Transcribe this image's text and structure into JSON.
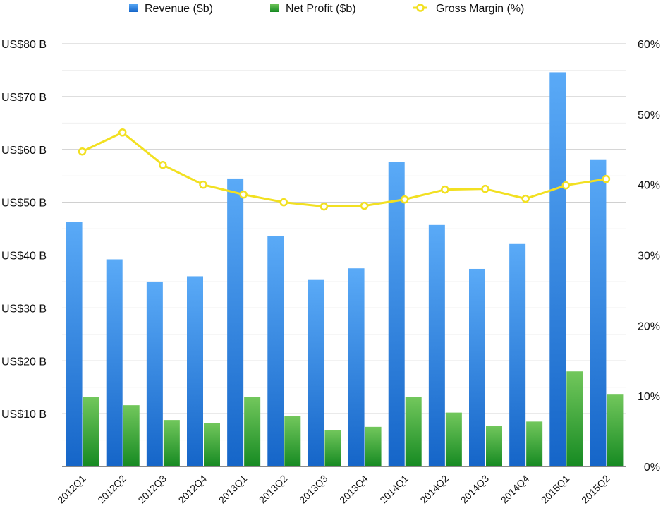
{
  "chart_data": {
    "type": "bar",
    "categories": [
      "2012Q1",
      "2012Q2",
      "2012Q3",
      "2012Q4",
      "2013Q1",
      "2013Q2",
      "2013Q3",
      "2013Q4",
      "2014Q1",
      "2014Q2",
      "2014Q3",
      "2014Q4",
      "2015Q1",
      "2015Q2"
    ],
    "series": [
      {
        "name": "Revenue ($b)",
        "type": "bar",
        "axis": "left",
        "color": "#2f86e8",
        "values": [
          46.3,
          39.2,
          35.0,
          36.0,
          54.5,
          43.6,
          35.3,
          37.5,
          57.6,
          45.7,
          37.4,
          42.1,
          74.6,
          58.0
        ]
      },
      {
        "name": "Net Profit ($b)",
        "type": "bar",
        "axis": "left",
        "color": "#3fa535",
        "values": [
          13.1,
          11.6,
          8.8,
          8.2,
          13.1,
          9.5,
          6.9,
          7.5,
          13.1,
          10.2,
          7.7,
          8.5,
          18.0,
          13.6
        ]
      },
      {
        "name": "Gross Margin (%)",
        "type": "line",
        "axis": "right",
        "color": "#f2e021",
        "values": [
          44.7,
          47.4,
          42.8,
          40.0,
          38.6,
          37.5,
          36.9,
          37.0,
          37.9,
          39.3,
          39.4,
          38.0,
          39.9,
          40.8
        ]
      }
    ],
    "y_left": {
      "ylim": [
        0,
        80
      ],
      "ticks": [
        10,
        20,
        30,
        40,
        50,
        60,
        70,
        80
      ],
      "tick_labels": [
        "US$10 B",
        "US$20 B",
        "US$30 B",
        "US$40 B",
        "US$50 B",
        "US$60 B",
        "US$70 B",
        "US$80 B"
      ]
    },
    "y_right": {
      "ylim": [
        0,
        60
      ],
      "ticks": [
        0,
        10,
        20,
        30,
        40,
        50,
        60
      ],
      "tick_labels": [
        "0%",
        "10%",
        "20%",
        "30%",
        "40%",
        "50%",
        "60%"
      ]
    },
    "grid": true,
    "legend": "top-center"
  }
}
